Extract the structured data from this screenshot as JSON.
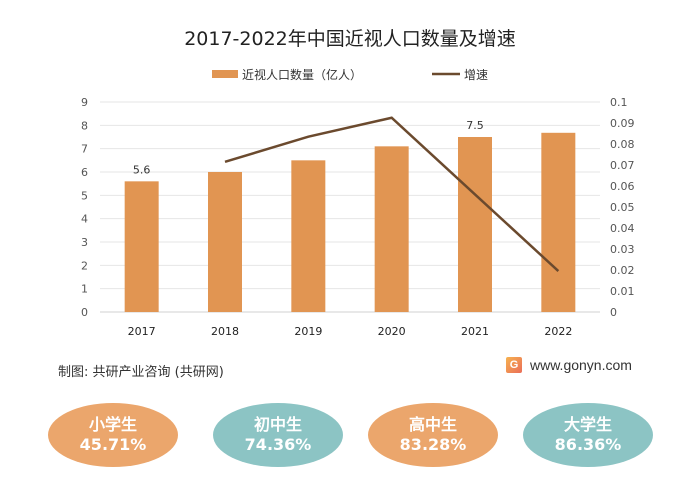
{
  "chart_data": {
    "type": "bar+line",
    "title": "2017-2022年中国近视人口数量及增速",
    "categories": [
      "2017",
      "2018",
      "2019",
      "2020",
      "2021",
      "2022"
    ],
    "series": [
      {
        "name": "近视人口数量（亿人）",
        "type": "bar",
        "axis": "left",
        "color": "#E19552",
        "values": [
          5.6,
          6.0,
          6.5,
          7.1,
          7.5,
          7.68
        ]
      },
      {
        "name": "增速",
        "type": "line",
        "axis": "right",
        "color": "#6B4A2E",
        "values": [
          null,
          0.0715,
          0.0835,
          0.0925,
          0.056,
          0.0195
        ]
      }
    ],
    "data_labels": [
      {
        "category": "2017",
        "text": "5.6"
      },
      {
        "category": "2021",
        "text": "7.5"
      }
    ],
    "y_left": {
      "range": [
        0,
        9
      ],
      "ticks": [
        "0",
        "1",
        "2",
        "3",
        "4",
        "5",
        "6",
        "7",
        "8",
        "9"
      ]
    },
    "y_right": {
      "range": [
        0,
        0.1
      ],
      "ticks": [
        "0",
        "0.01",
        "0.02",
        "0.03",
        "0.04",
        "0.05",
        "0.06",
        "0.07",
        "0.08",
        "0.09",
        "0.1"
      ]
    },
    "grid": true,
    "legend": "top-center"
  },
  "footer": {
    "credit": "制图: 共研产业咨询 (共研网)",
    "logo_letter": "G",
    "website": "www.gonyn.com"
  },
  "bubbles": [
    {
      "label": "小学生",
      "value": "45.71%",
      "color": "#EBA66C"
    },
    {
      "label": "初中生",
      "value": "74.36%",
      "color": "#8CC4C4"
    },
    {
      "label": "高中生",
      "value": "83.28%",
      "color": "#EBA66C"
    },
    {
      "label": "大学生",
      "value": "86.36%",
      "color": "#8CC4C4"
    }
  ]
}
